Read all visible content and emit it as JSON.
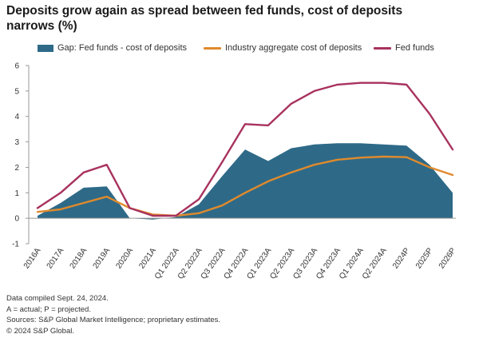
{
  "title": "Deposits grow again as spread between fed funds, cost of deposits narrows (%)",
  "legend": {
    "gap": "Gap: Fed funds - cost of deposits",
    "cost": "Industry aggregate cost of deposits",
    "fed": "Fed funds"
  },
  "colors": {
    "gap": "#2e6a88",
    "cost": "#e08a2c",
    "fed": "#a8325e"
  },
  "footnotes": [
    "Data compiled Sept. 24, 2024.",
    "A = actual; P = projected.",
    "Sources: S&P Global Market Intelligence; proprietary estimates.",
    "© 2024 S&P Global."
  ],
  "chart_data": {
    "type": "area",
    "title": "Deposits grow again as spread between fed funds, cost of deposits narrows (%)",
    "categories": [
      "2016A",
      "2017A",
      "2018A",
      "2019A",
      "2020A",
      "2021A",
      "Q1 2022A",
      "Q2 2022A",
      "Q3 2022A",
      "Q4 2022A",
      "Q1 2023A",
      "Q2 2023A",
      "Q3 2023A",
      "Q4 2023A",
      "Q1 2024A",
      "Q2 2024A",
      "2024P",
      "2025P",
      "2026P"
    ],
    "ylim": [
      -1,
      6
    ],
    "yticks": [
      -1,
      0,
      1,
      2,
      3,
      4,
      5,
      6
    ],
    "grid": false,
    "legend_position": "top",
    "series": [
      {
        "name": "Gap: Fed funds - cost of deposits",
        "type": "area",
        "values": [
          0.1,
          0.6,
          1.2,
          1.25,
          0.0,
          -0.05,
          0.05,
          0.55,
          1.65,
          2.7,
          2.25,
          2.75,
          2.9,
          2.95,
          2.95,
          2.9,
          2.85,
          2.1,
          1.0
        ]
      },
      {
        "name": "Industry aggregate cost of deposits",
        "type": "line",
        "values": [
          0.25,
          0.35,
          0.6,
          0.85,
          0.4,
          0.15,
          0.1,
          0.2,
          0.5,
          1.0,
          1.45,
          1.8,
          2.1,
          2.3,
          2.38,
          2.42,
          2.4,
          2.0,
          1.7
        ]
      },
      {
        "name": "Fed funds",
        "type": "line",
        "values": [
          0.4,
          1.0,
          1.8,
          2.1,
          0.4,
          0.1,
          0.1,
          0.75,
          2.2,
          3.7,
          3.65,
          4.5,
          5.0,
          5.25,
          5.32,
          5.32,
          5.25,
          4.1,
          2.7
        ]
      }
    ]
  }
}
